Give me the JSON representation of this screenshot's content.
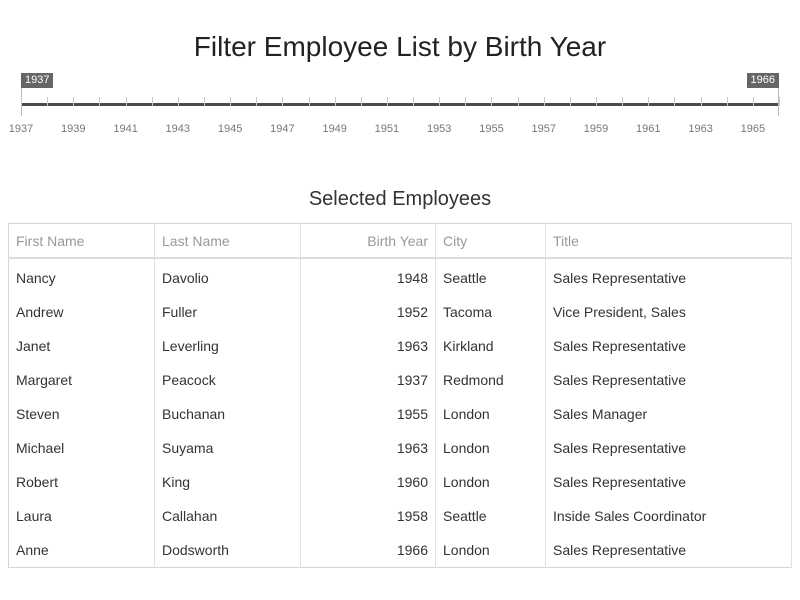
{
  "page_title": "Filter Employee List by Birth Year",
  "slider": {
    "min_value": "1937",
    "max_value": "1966",
    "range_min": 1937,
    "range_max": 1966,
    "tick_labels": [
      "1937",
      "1939",
      "1941",
      "1943",
      "1945",
      "1947",
      "1949",
      "1951",
      "1953",
      "1955",
      "1957",
      "1959",
      "1961",
      "1963",
      "1965"
    ]
  },
  "section_title": "Selected Employees",
  "table": {
    "columns": [
      "First Name",
      "Last Name",
      "Birth Year",
      "City",
      "Title"
    ],
    "rows": [
      [
        "Nancy",
        "Davolio",
        "1948",
        "Seattle",
        "Sales Representative"
      ],
      [
        "Andrew",
        "Fuller",
        "1952",
        "Tacoma",
        "Vice President, Sales"
      ],
      [
        "Janet",
        "Leverling",
        "1963",
        "Kirkland",
        "Sales Representative"
      ],
      [
        "Margaret",
        "Peacock",
        "1937",
        "Redmond",
        "Sales Representative"
      ],
      [
        "Steven",
        "Buchanan",
        "1955",
        "London",
        "Sales Manager"
      ],
      [
        "Michael",
        "Suyama",
        "1963",
        "London",
        "Sales Representative"
      ],
      [
        "Robert",
        "King",
        "1960",
        "London",
        "Sales Representative"
      ],
      [
        "Laura",
        "Callahan",
        "1958",
        "Seattle",
        "Inside Sales Coordinator"
      ],
      [
        "Anne",
        "Dodsworth",
        "1966",
        "London",
        "Sales Representative"
      ]
    ]
  }
}
